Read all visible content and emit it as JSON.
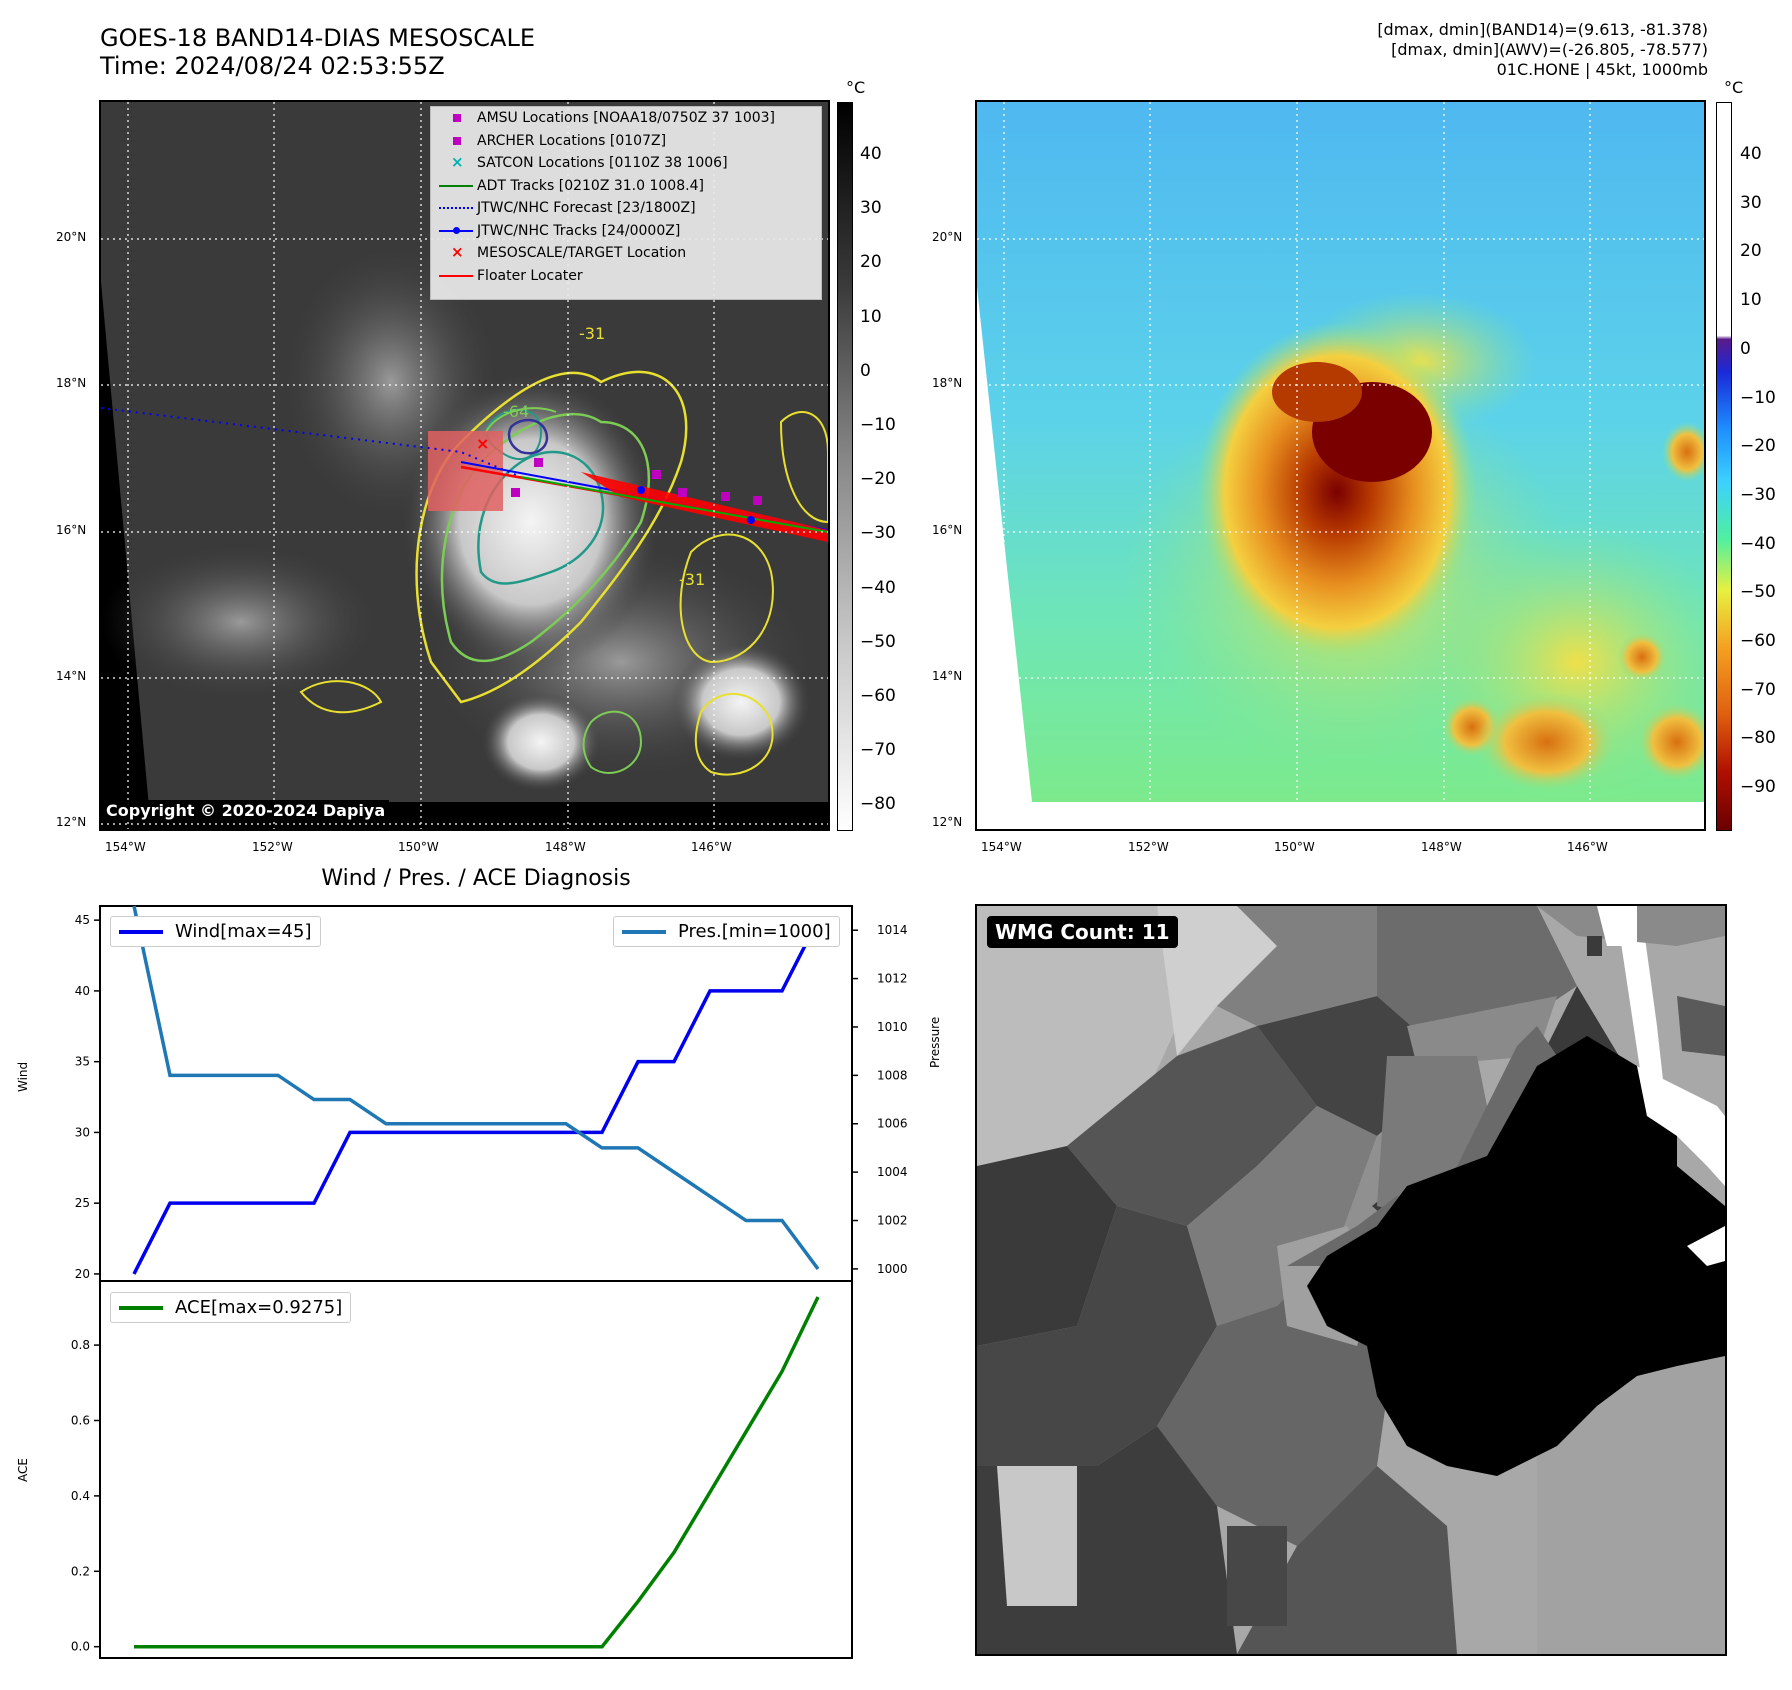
{
  "header": {
    "title_line1": "GOES-18 BAND14-DIAS MESOSCALE",
    "title_line2": "Time: 2024/08/24 02:53:55Z",
    "info_line1": "[dmax, dmin](BAND14)=(9.613, -81.378)",
    "info_line2": "[dmax, dmin](AWV)=(-26.805, -78.577)",
    "info_line3": "01C.HONE | 45kt, 1000mb"
  },
  "map_axes": {
    "lat_labels": [
      "20°N",
      "18°N",
      "16°N",
      "14°N",
      "12°N"
    ],
    "lon_labels": [
      "154°W",
      "152°W",
      "150°W",
      "148°W",
      "146°W"
    ]
  },
  "colorbar_left": {
    "unit": "°C",
    "ticks": [
      "40",
      "30",
      "20",
      "10",
      "0",
      "−10",
      "−20",
      "−30",
      "−40",
      "−50",
      "−60",
      "−70",
      "−80"
    ]
  },
  "colorbar_right": {
    "unit": "°C",
    "ticks": [
      "40",
      "30",
      "20",
      "10",
      "0",
      "−10",
      "−20",
      "−30",
      "−40",
      "−50",
      "−60",
      "−70",
      "−80",
      "−90"
    ]
  },
  "legend": {
    "items": [
      {
        "label": "AMSU Locations [NOAA18/0750Z 37 1003]",
        "symbol": "square",
        "color": "#c000c0"
      },
      {
        "label": "ARCHER Locations [0107Z]",
        "symbol": "square",
        "color": "#c000c0"
      },
      {
        "label": "SATCON Locations [0110Z 38 1006]",
        "symbol": "x",
        "color": "#00b0b0"
      },
      {
        "label": "ADT Tracks [0210Z 31.0 1008.4]",
        "symbol": "line",
        "color": "#008000"
      },
      {
        "label": "JTWC/NHC Forecast [23/1800Z]",
        "symbol": "dotted",
        "color": "#0000ff"
      },
      {
        "label": "JTWC/NHC Tracks [24/0000Z]",
        "symbol": "line-dot",
        "color": "#0000ff"
      },
      {
        "label": "MESOSCALE/TARGET Location",
        "symbol": "x",
        "color": "#ff0000"
      },
      {
        "label": "Floater Locater",
        "symbol": "line",
        "color": "#ff0000"
      }
    ]
  },
  "contour_labels": [
    "-31",
    "-64",
    "-31"
  ],
  "copyright": "Copyright © 2020-2024 Dapiya",
  "wmg_badge": "WMG Count: 11",
  "chart_data": [
    {
      "type": "line",
      "title": "Wind / Pres. / ACE Diagnosis",
      "ylabel": "Wind",
      "ylabel_right": "Pressure",
      "ylim": [
        19.5,
        46
      ],
      "ylim_right": [
        999.5,
        1015
      ],
      "yticks": [
        20,
        25,
        30,
        35,
        40,
        45
      ],
      "yticks_right": [
        1000,
        1002,
        1004,
        1006,
        1008,
        1010,
        1012,
        1014
      ],
      "series": [
        {
          "name": "Wind[max=45]",
          "color": "#0000ee",
          "axis": "left",
          "values": [
            20,
            25,
            25,
            25,
            25,
            25,
            30,
            30,
            30,
            30,
            30,
            30,
            30,
            30,
            35,
            35,
            40,
            40,
            40,
            45
          ]
        },
        {
          "name": "Pres.[min=1000]",
          "color": "#1f77b4",
          "axis": "right",
          "values": [
            1015,
            1008,
            1008,
            1008,
            1008,
            1007,
            1007,
            1006,
            1006,
            1006,
            1006,
            1006,
            1006,
            1005,
            1005,
            1004,
            1003,
            1002,
            1002,
            1000
          ]
        }
      ]
    },
    {
      "type": "line",
      "ylabel": "ACE",
      "ylim": [
        -0.03,
        0.97
      ],
      "yticks": [
        "0.0",
        "0.2",
        "0.4",
        "0.6",
        "0.8"
      ],
      "series": [
        {
          "name": "ACE[max=0.9275]",
          "color": "#008000",
          "values": [
            0,
            0,
            0,
            0,
            0,
            0,
            0,
            0,
            0,
            0,
            0,
            0,
            0,
            0,
            0.12,
            0.25,
            0.41,
            0.57,
            0.73,
            0.9275
          ]
        }
      ]
    }
  ]
}
